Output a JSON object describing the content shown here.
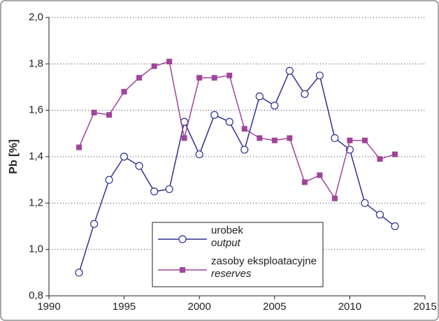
{
  "chart_data": {
    "type": "line",
    "ylabel": "Pb [%]",
    "x": [
      1992,
      1993,
      1994,
      1995,
      1996,
      1997,
      1998,
      1999,
      2000,
      2001,
      2002,
      2003,
      2004,
      2005,
      2006,
      2007,
      2008,
      2009,
      2010,
      2011,
      2012,
      2013
    ],
    "series": [
      {
        "name": "urobek",
        "name_en": "output",
        "color": "#2e3192",
        "marker": "circle",
        "values": [
          0.9,
          1.11,
          1.3,
          1.4,
          1.36,
          1.25,
          1.26,
          1.55,
          1.41,
          1.58,
          1.55,
          1.43,
          1.66,
          1.62,
          1.77,
          1.67,
          1.75,
          1.48,
          1.43,
          1.2,
          1.15,
          1.1
        ]
      },
      {
        "name": "zasoby eksploatacyjne",
        "name_en": "reserves",
        "color": "#a0449a",
        "marker": "square",
        "values": [
          1.44,
          1.59,
          1.58,
          1.68,
          1.74,
          1.79,
          1.81,
          1.48,
          1.74,
          1.74,
          1.75,
          1.52,
          1.48,
          1.47,
          1.48,
          1.29,
          1.32,
          1.22,
          1.47,
          1.47,
          1.39,
          1.41
        ]
      }
    ],
    "xlim": [
      1990,
      2015
    ],
    "xticks": [
      1990,
      1995,
      2000,
      2005,
      2010,
      2015
    ],
    "ylim": [
      0.8,
      2.0
    ],
    "yticks": [
      {
        "value": 0.8,
        "label": "0,8"
      },
      {
        "value": 1.0,
        "label": "1,0"
      },
      {
        "value": 1.2,
        "label": "1,2"
      },
      {
        "value": 1.4,
        "label": "1,4"
      },
      {
        "value": 1.6,
        "label": "1,6"
      },
      {
        "value": 1.8,
        "label": "1,8"
      },
      {
        "value": 2.0,
        "label": "2,0"
      }
    ],
    "grid": true
  }
}
